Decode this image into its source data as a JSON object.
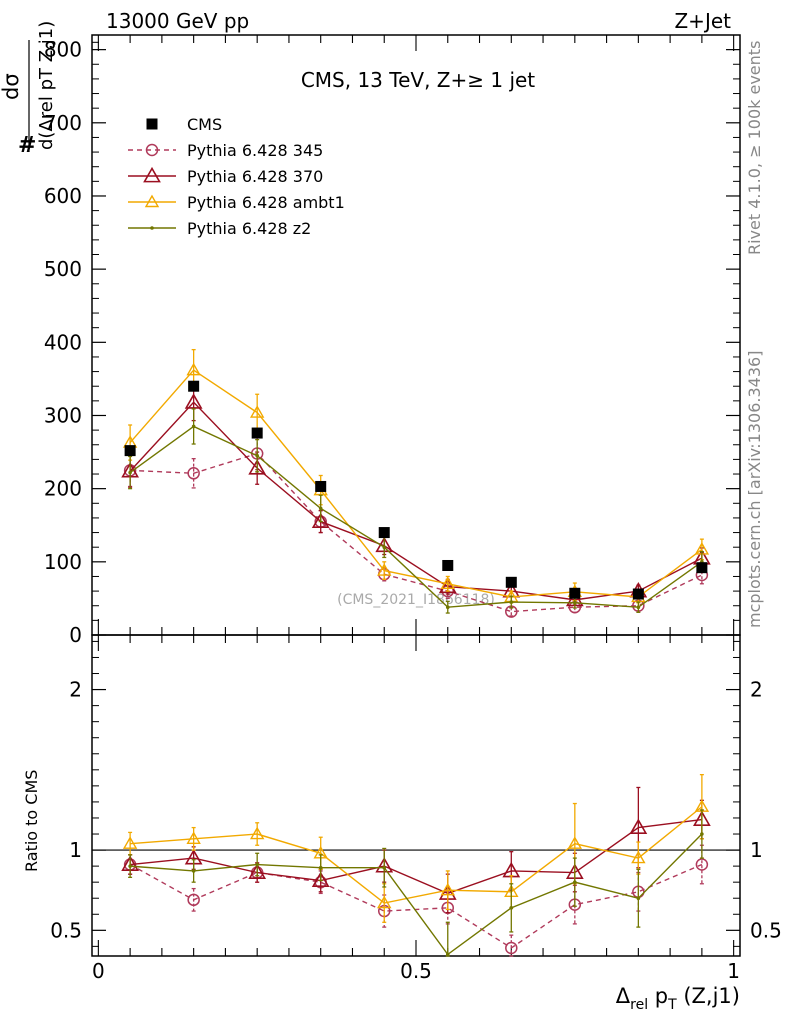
{
  "header": {
    "left": "13000 GeV pp",
    "right": "Z+Jet"
  },
  "side_labels": {
    "rivet": "Rivet 4.1.0, ≥ 100k events",
    "mcplots": "mcplots.cern.ch [arXiv:1306.3436]"
  },
  "watermark": "(CMS_2021_I1866118)",
  "axis_labels": {
    "y_main_numerator": "dσ",
    "y_main_hash": "#",
    "y_main_denominator": "d(Δrel pT Z,j1)",
    "y_ratio": "Ratio to CMS",
    "x_delta": "Δ",
    "x_rel": "rel",
    "x_p": " p",
    "x_T": "T",
    "x_tail": " (Z,j1)"
  },
  "colors": {
    "cms": "#000000",
    "p345": "#b03a5b",
    "p370": "#9b0f20",
    "ambt1": "#f2a900",
    "z2": "#727700"
  },
  "chart_data": [
    {
      "type": "line",
      "panel": "main",
      "title": "CMS, 13 TeV, Z+≥ 1 jet",
      "xlabel": "Δrel pT (Z,j1)",
      "ylabel": "# dσ / d(Δrel pT Z,j1)",
      "xlim": [
        -0.01,
        1.01
      ],
      "ylim": [
        0,
        820
      ],
      "yticks": [
        0,
        100,
        200,
        300,
        400,
        500,
        600,
        700,
        800
      ],
      "ytick_labels": [
        "0",
        "100",
        "200",
        "300",
        "400",
        "500",
        "600",
        "700",
        "800"
      ],
      "x": [
        0.05,
        0.15,
        0.25,
        0.35,
        0.45,
        0.55,
        0.65,
        0.75,
        0.85,
        0.95
      ],
      "series": [
        {
          "name": "CMS",
          "key": "cms",
          "values": [
            252,
            340,
            276,
            203,
            140,
            95,
            72,
            57,
            56,
            92
          ],
          "errors": [
            0,
            0,
            0,
            0,
            0,
            0,
            0,
            0,
            0,
            0
          ]
        },
        {
          "name": "Pythia 6.428 345",
          "key": "p345",
          "values": [
            225,
            221,
            248,
            155,
            83,
            60,
            32,
            38,
            40,
            82
          ],
          "errors": [
            22,
            20,
            22,
            15,
            9,
            10,
            6,
            7,
            7,
            12
          ]
        },
        {
          "name": "Pythia 6.428 370",
          "key": "p370",
          "values": [
            224,
            318,
            228,
            155,
            122,
            66,
            60,
            48,
            60,
            105
          ],
          "errors": [
            22,
            25,
            22,
            15,
            12,
            10,
            8,
            7,
            8,
            14
          ]
        },
        {
          "name": "Pythia 6.428 ambt1",
          "key": "ambt1",
          "values": [
            263,
            362,
            304,
            198,
            88,
            70,
            52,
            59,
            52,
            117
          ],
          "errors": [
            24,
            28,
            25,
            20,
            12,
            10,
            8,
            12,
            8,
            14
          ]
        },
        {
          "name": "Pythia 6.428 z2",
          "key": "z2",
          "values": [
            222,
            285,
            245,
            173,
            120,
            38,
            45,
            44,
            38,
            100
          ],
          "errors": [
            22,
            24,
            22,
            18,
            14,
            8,
            8,
            7,
            7,
            14
          ]
        }
      ]
    },
    {
      "type": "line",
      "panel": "ratio",
      "ylabel": "Ratio to CMS",
      "xlim": [
        -0.01,
        1.01
      ],
      "ylim": [
        0.34,
        2.34
      ],
      "yticks": [
        0.5,
        1,
        2
      ],
      "ytick_labels": [
        "0.5",
        "1",
        "2"
      ],
      "xticks": [
        0,
        0.5,
        1
      ],
      "xtick_labels": [
        "0",
        "0.5",
        "1"
      ],
      "x": [
        0.05,
        0.15,
        0.25,
        0.35,
        0.45,
        0.55,
        0.65,
        0.75,
        0.85,
        0.95
      ],
      "reference": 1,
      "series": [
        {
          "name": "Pythia 6.428 345",
          "key": "p345",
          "values": [
            0.91,
            0.69,
            0.86,
            0.8,
            0.62,
            0.64,
            0.39,
            0.66,
            0.74,
            0.91
          ],
          "errors": [
            0.06,
            0.07,
            0.06,
            0.07,
            0.1,
            0.1,
            0.08,
            0.12,
            0.12,
            0.12
          ]
        },
        {
          "name": "Pythia 6.428 370",
          "key": "p370",
          "values": [
            0.91,
            0.95,
            0.86,
            0.81,
            0.9,
            0.73,
            0.87,
            0.86,
            1.14,
            1.19
          ],
          "errors": [
            0.06,
            0.07,
            0.06,
            0.07,
            0.1,
            0.12,
            0.12,
            0.12,
            0.25,
            0.12
          ]
        },
        {
          "name": "Pythia 6.428 ambt1",
          "key": "ambt1",
          "values": [
            1.04,
            1.07,
            1.1,
            0.98,
            0.67,
            0.75,
            0.74,
            1.04,
            0.95,
            1.27
          ],
          "errors": [
            0.07,
            0.07,
            0.07,
            0.1,
            0.12,
            0.12,
            0.1,
            0.25,
            0.1,
            0.2
          ]
        },
        {
          "name": "Pythia 6.428 z2",
          "key": "z2",
          "values": [
            0.9,
            0.87,
            0.91,
            0.89,
            0.89,
            0.35,
            0.64,
            0.8,
            0.7,
            1.1
          ],
          "errors": [
            0.07,
            0.07,
            0.07,
            0.08,
            0.12,
            0.2,
            0.15,
            0.15,
            0.18,
            0.15
          ]
        }
      ]
    }
  ]
}
